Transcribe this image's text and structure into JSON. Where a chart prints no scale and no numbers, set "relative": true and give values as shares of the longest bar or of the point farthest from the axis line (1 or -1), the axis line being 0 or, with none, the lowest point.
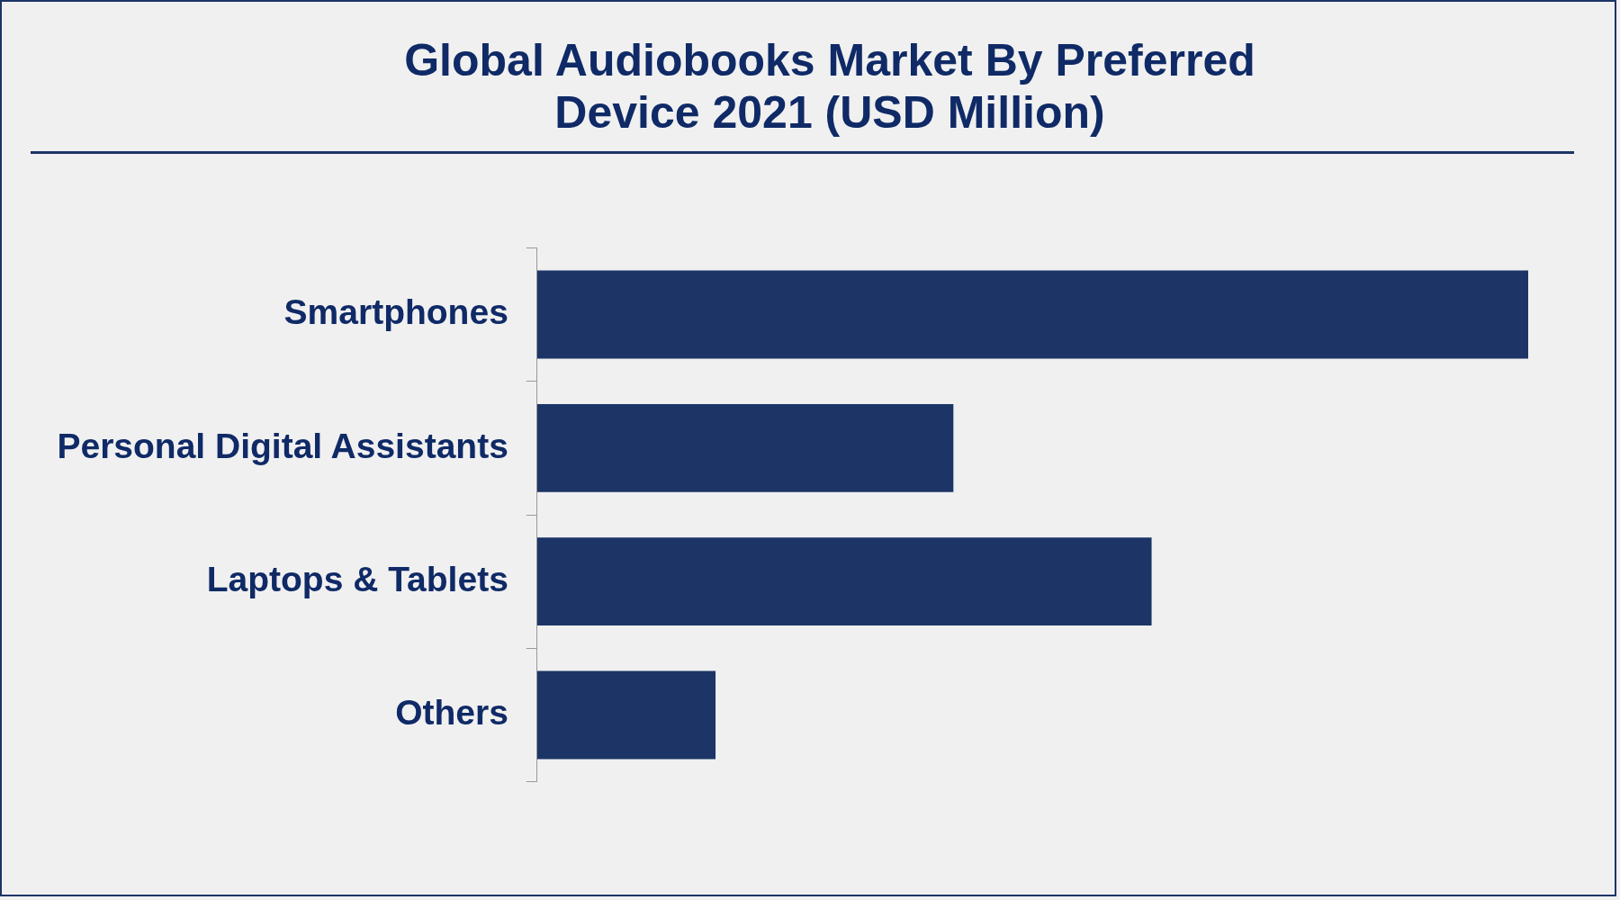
{
  "chart_data": {
    "type": "bar",
    "orientation": "horizontal",
    "relative": true,
    "title": "Global Audiobooks Market By Preferred Device 2021 (USD Million)",
    "categories": [
      "Smartphones",
      "Personal Digital Assistants",
      "Laptops & Tablets",
      "Others"
    ],
    "values": [
      1,
      0.42,
      0.62,
      0.18
    ],
    "color": "#1c3566"
  }
}
